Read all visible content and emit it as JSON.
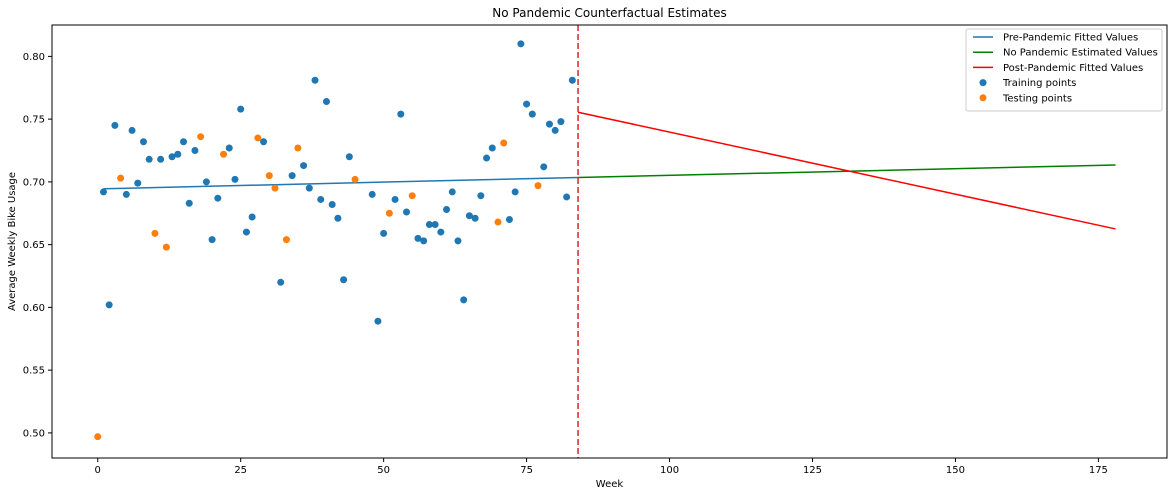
{
  "chart_data": {
    "type": "scatter",
    "title": "No Pandemic Counterfactual Estimates",
    "xlabel": "Week",
    "ylabel": "Average Weekly Bike Usage",
    "xlim": [
      -8,
      187
    ],
    "ylim": [
      0.48,
      0.825
    ],
    "xticks": [
      0,
      25,
      50,
      75,
      100,
      125,
      150,
      175
    ],
    "yticks": [
      0.5,
      0.55,
      0.6,
      0.65,
      0.7,
      0.75,
      0.8
    ],
    "ytick_labels": [
      "0.50",
      "0.55",
      "0.60",
      "0.65",
      "0.70",
      "0.75",
      "0.80"
    ],
    "grid": false,
    "legend_position": "top-right",
    "vline": {
      "x": 84,
      "color": "#d62728",
      "style": "dashed"
    },
    "lines": [
      {
        "name": "Pre-Pandemic Fitted Values",
        "color": "#1f77b4",
        "x": [
          1,
          84
        ],
        "y": [
          0.6945,
          0.7035
        ]
      },
      {
        "name": "No Pandemic Estimated Values",
        "color": "#008000",
        "x": [
          84,
          178
        ],
        "y": [
          0.7035,
          0.7135
        ]
      },
      {
        "name": "Post-Pandemic Fitted Values",
        "color": "#ff0000",
        "x": [
          84,
          178
        ],
        "y": [
          0.7555,
          0.6625
        ]
      }
    ],
    "scatters": [
      {
        "name": "Training points",
        "color": "#1f77b4",
        "points": [
          [
            1,
            0.692
          ],
          [
            2,
            0.602
          ],
          [
            3,
            0.745
          ],
          [
            5,
            0.69
          ],
          [
            6,
            0.741
          ],
          [
            7,
            0.699
          ],
          [
            8,
            0.732
          ],
          [
            9,
            0.718
          ],
          [
            11,
            0.718
          ],
          [
            13,
            0.72
          ],
          [
            14,
            0.722
          ],
          [
            15,
            0.732
          ],
          [
            16,
            0.683
          ],
          [
            17,
            0.725
          ],
          [
            19,
            0.7
          ],
          [
            20,
            0.654
          ],
          [
            21,
            0.687
          ],
          [
            23,
            0.727
          ],
          [
            24,
            0.702
          ],
          [
            25,
            0.758
          ],
          [
            26,
            0.66
          ],
          [
            27,
            0.672
          ],
          [
            29,
            0.732
          ],
          [
            32,
            0.62
          ],
          [
            34,
            0.705
          ],
          [
            36,
            0.713
          ],
          [
            37,
            0.695
          ],
          [
            38,
            0.781
          ],
          [
            39,
            0.686
          ],
          [
            40,
            0.764
          ],
          [
            41,
            0.682
          ],
          [
            42,
            0.671
          ],
          [
            43,
            0.622
          ],
          [
            44,
            0.72
          ],
          [
            48,
            0.69
          ],
          [
            49,
            0.589
          ],
          [
            50,
            0.659
          ],
          [
            52,
            0.686
          ],
          [
            53,
            0.754
          ],
          [
            54,
            0.676
          ],
          [
            56,
            0.655
          ],
          [
            57,
            0.653
          ],
          [
            58,
            0.666
          ],
          [
            59,
            0.666
          ],
          [
            60,
            0.66
          ],
          [
            61,
            0.678
          ],
          [
            62,
            0.692
          ],
          [
            63,
            0.653
          ],
          [
            64,
            0.606
          ],
          [
            65,
            0.673
          ],
          [
            66,
            0.671
          ],
          [
            67,
            0.689
          ],
          [
            68,
            0.719
          ],
          [
            69,
            0.727
          ],
          [
            72,
            0.67
          ],
          [
            73,
            0.692
          ],
          [
            74,
            0.81
          ],
          [
            75,
            0.762
          ],
          [
            76,
            0.754
          ],
          [
            78,
            0.712
          ],
          [
            79,
            0.746
          ],
          [
            80,
            0.741
          ],
          [
            81,
            0.748
          ],
          [
            82,
            0.688
          ],
          [
            83,
            0.781
          ]
        ]
      },
      {
        "name": "Testing points",
        "color": "#ff7f0e",
        "points": [
          [
            0,
            0.497
          ],
          [
            4,
            0.703
          ],
          [
            10,
            0.659
          ],
          [
            12,
            0.648
          ],
          [
            18,
            0.736
          ],
          [
            22,
            0.722
          ],
          [
            28,
            0.735
          ],
          [
            30,
            0.705
          ],
          [
            31,
            0.695
          ],
          [
            33,
            0.654
          ],
          [
            35,
            0.727
          ],
          [
            45,
            0.702
          ],
          [
            51,
            0.675
          ],
          [
            55,
            0.689
          ],
          [
            70,
            0.668
          ],
          [
            71,
            0.731
          ],
          [
            77,
            0.697
          ]
        ]
      }
    ]
  }
}
